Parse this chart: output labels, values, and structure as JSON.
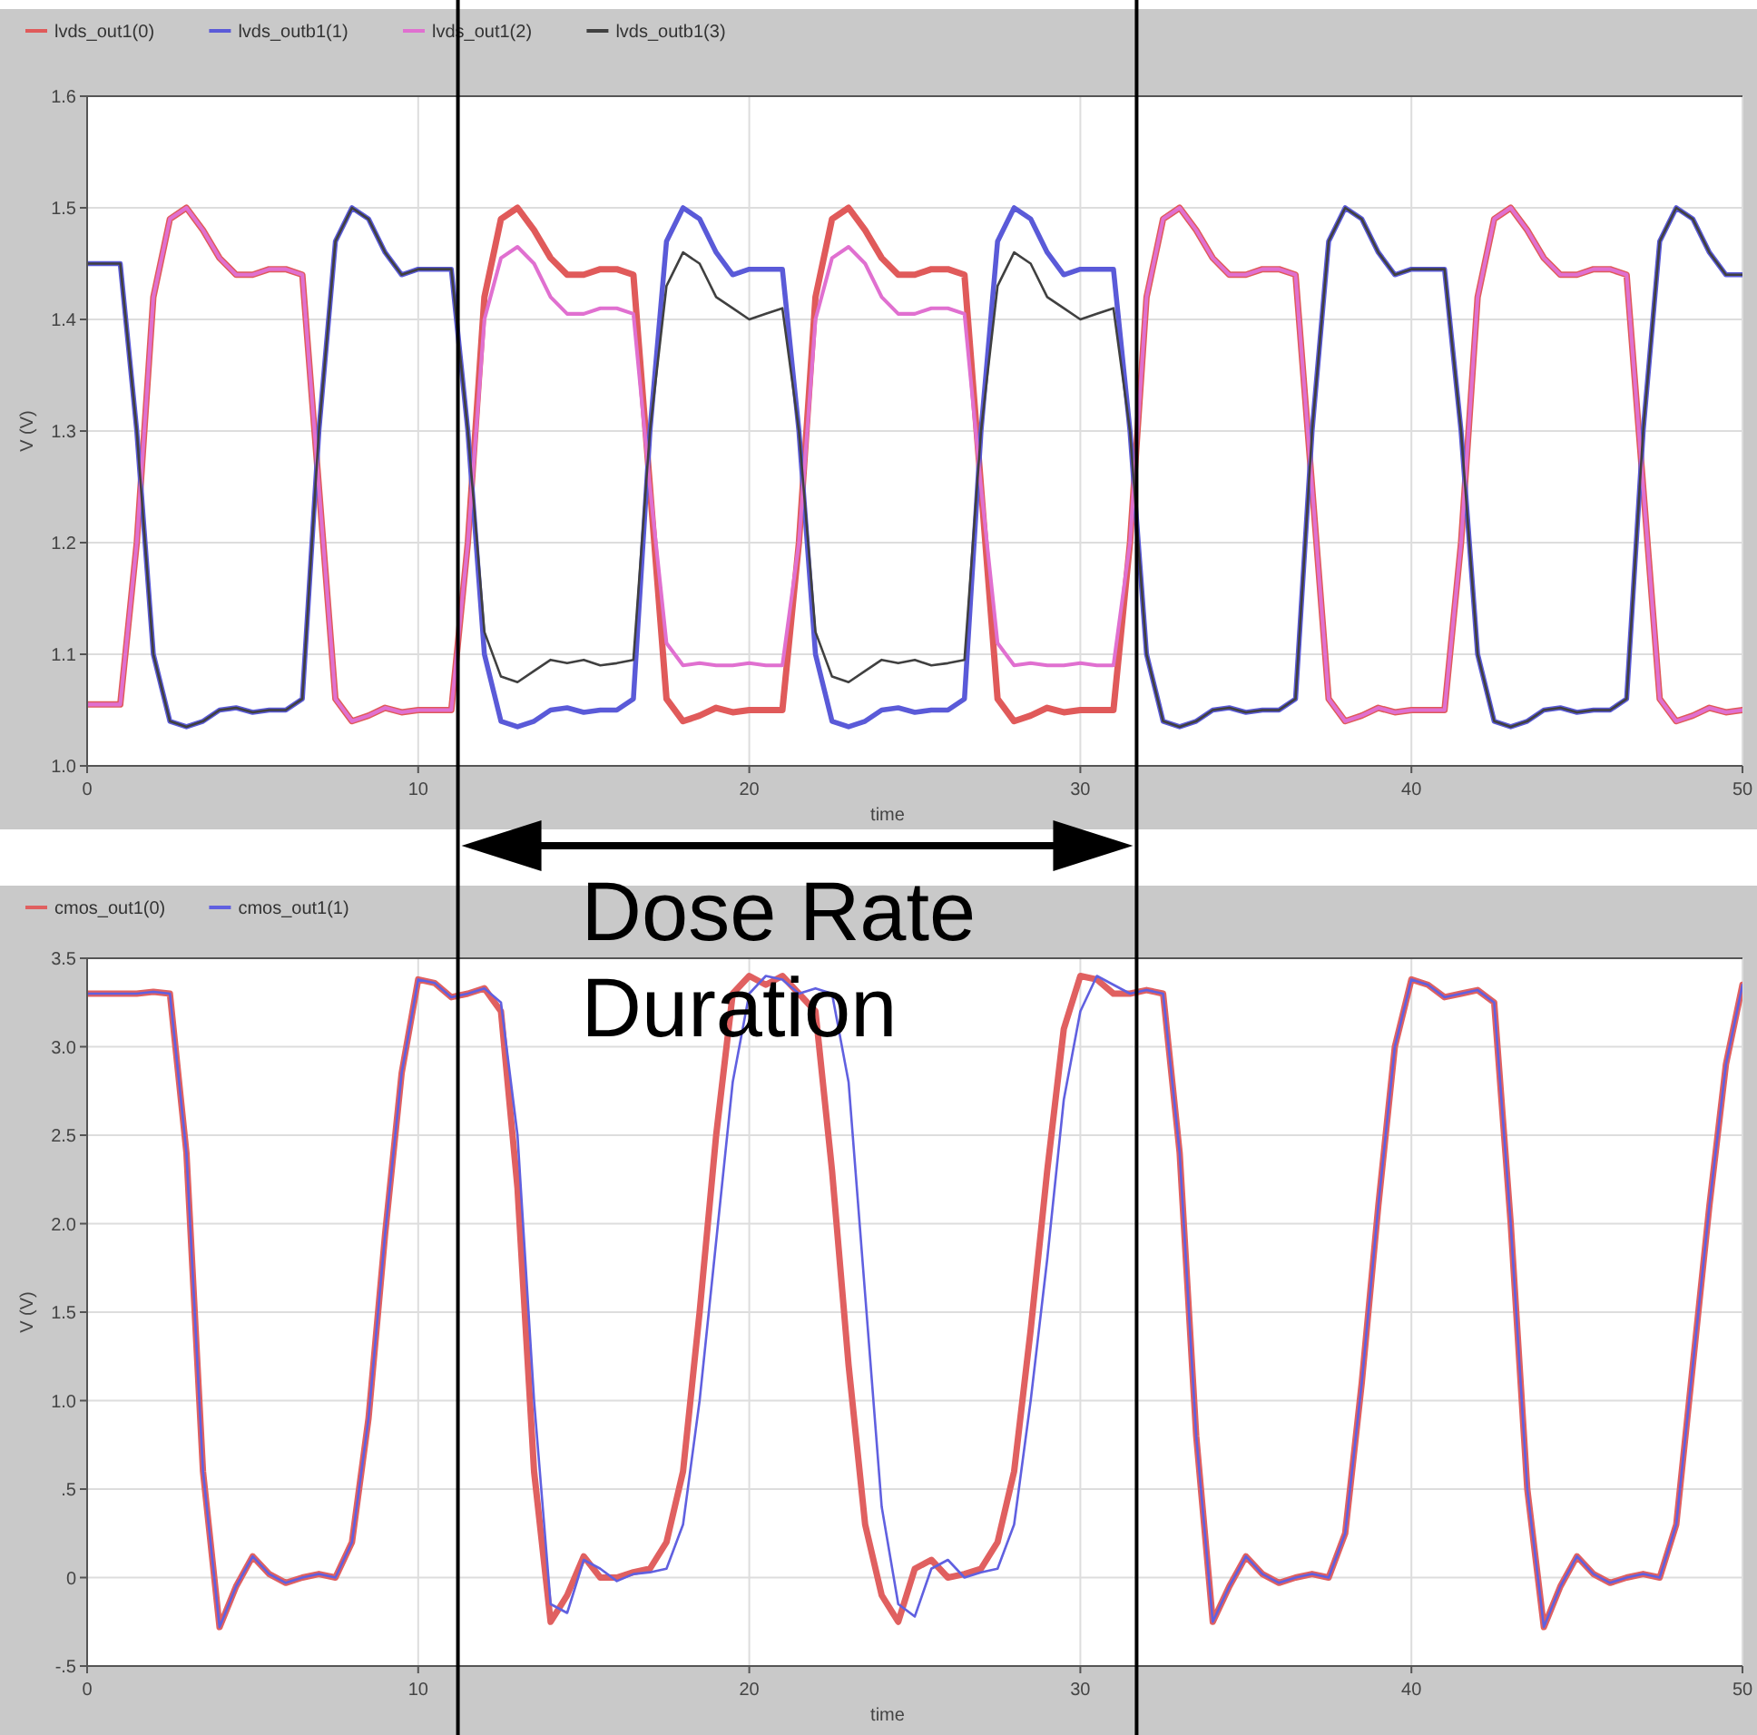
{
  "chart_data": [
    {
      "type": "line",
      "xlabel": "time",
      "ylabel": "V (V)",
      "xlim": [
        0,
        50
      ],
      "ylim": [
        1.0,
        1.6
      ],
      "xticks": [
        0,
        10,
        20,
        30,
        40,
        50
      ],
      "yticks": [
        {
          "value": 1.0,
          "label": "1.0"
        },
        1.1,
        1.2,
        1.3,
        1.4,
        1.5,
        1.6
      ],
      "grid": true,
      "legend": "top left",
      "x": [
        0,
        0.5,
        1,
        1.5,
        2,
        2.5,
        3,
        3.5,
        4,
        4.5,
        5,
        5.5,
        6,
        6.5,
        7,
        7.5,
        8,
        8.5,
        9,
        9.5,
        10,
        10.5,
        11,
        11.5,
        12,
        12.5,
        13,
        13.5,
        14,
        14.5,
        15,
        15.5,
        16,
        16.5,
        17,
        17.5,
        18,
        18.5,
        19,
        19.5,
        20,
        20.5,
        21,
        21.5,
        22,
        22.5,
        23,
        23.5,
        24,
        24.5,
        25,
        25.5,
        26,
        26.5,
        27,
        27.5,
        28,
        28.5,
        29,
        29.5,
        30,
        30.5,
        31,
        31.5,
        32,
        32.5,
        33,
        33.5,
        34,
        34.5,
        35,
        35.5,
        36,
        36.5,
        37,
        37.5,
        38,
        38.5,
        39,
        39.5,
        40,
        40.5,
        41,
        41.5,
        42,
        42.5,
        43,
        43.5,
        44,
        44.5,
        45,
        45.5,
        46,
        46.5,
        47,
        47.5,
        48,
        48.5,
        49,
        49.5,
        50
      ],
      "ref_lines": [
        {
          "axis": "x",
          "value": 11.2,
          "color": "#000000"
        },
        {
          "axis": "x",
          "value": 31.7,
          "color": "#000000"
        }
      ],
      "series": [
        {
          "name": "lvds_out1(0)",
          "color": "#e05a5a",
          "values": [
            1.055,
            1.055,
            1.055,
            1.2,
            1.42,
            1.49,
            1.5,
            1.48,
            1.455,
            1.44,
            1.44,
            1.445,
            1.445,
            1.44,
            1.25,
            1.06,
            1.04,
            1.045,
            1.052,
            1.048,
            1.05,
            1.05,
            1.05,
            1.2,
            1.42,
            1.49,
            1.5,
            1.48,
            1.455,
            1.44,
            1.44,
            1.445,
            1.445,
            1.44,
            1.25,
            1.06,
            1.04,
            1.045,
            1.052,
            1.048,
            1.05,
            1.05,
            1.05,
            1.2,
            1.42,
            1.49,
            1.5,
            1.48,
            1.455,
            1.44,
            1.44,
            1.445,
            1.445,
            1.44,
            1.25,
            1.06,
            1.04,
            1.045,
            1.052,
            1.048,
            1.05,
            1.05,
            1.05,
            1.2,
            1.42,
            1.49,
            1.5,
            1.48,
            1.455,
            1.44,
            1.44,
            1.445,
            1.445,
            1.44,
            1.25,
            1.06,
            1.04,
            1.045,
            1.052,
            1.048,
            1.05,
            1.05,
            1.05,
            1.2,
            1.42,
            1.49,
            1.5,
            1.48,
            1.455,
            1.44,
            1.44,
            1.445,
            1.445,
            1.44,
            1.25,
            1.06,
            1.04,
            1.045,
            1.052,
            1.048,
            1.05
          ]
        },
        {
          "name": "lvds_outb1(1)",
          "color": "#5a5ad8",
          "values": [
            1.45,
            1.45,
            1.45,
            1.3,
            1.1,
            1.04,
            1.035,
            1.04,
            1.05,
            1.052,
            1.048,
            1.05,
            1.05,
            1.06,
            1.3,
            1.47,
            1.5,
            1.49,
            1.46,
            1.44,
            1.445,
            1.445,
            1.445,
            1.3,
            1.1,
            1.04,
            1.035,
            1.04,
            1.05,
            1.052,
            1.048,
            1.05,
            1.05,
            1.06,
            1.3,
            1.47,
            1.5,
            1.49,
            1.46,
            1.44,
            1.445,
            1.445,
            1.445,
            1.3,
            1.1,
            1.04,
            1.035,
            1.04,
            1.05,
            1.052,
            1.048,
            1.05,
            1.05,
            1.06,
            1.3,
            1.47,
            1.5,
            1.49,
            1.46,
            1.44,
            1.445,
            1.445,
            1.445,
            1.3,
            1.1,
            1.04,
            1.035,
            1.04,
            1.05,
            1.052,
            1.048,
            1.05,
            1.05,
            1.06,
            1.3,
            1.47,
            1.5,
            1.49,
            1.46,
            1.44,
            1.445,
            1.445,
            1.445,
            1.3,
            1.1,
            1.04,
            1.035,
            1.04,
            1.05,
            1.052,
            1.048,
            1.05,
            1.05,
            1.06,
            1.3,
            1.47,
            1.5,
            1.49,
            1.46,
            1.44,
            1.44
          ]
        },
        {
          "name": "lvds_out1(2)",
          "color": "#e070d0",
          "values": [
            1.055,
            1.055,
            1.055,
            1.2,
            1.42,
            1.49,
            1.5,
            1.48,
            1.455,
            1.44,
            1.44,
            1.445,
            1.445,
            1.44,
            1.25,
            1.06,
            1.04,
            1.045,
            1.052,
            1.048,
            1.05,
            1.05,
            1.05,
            1.2,
            1.4,
            1.455,
            1.465,
            1.45,
            1.42,
            1.405,
            1.405,
            1.41,
            1.41,
            1.405,
            1.25,
            1.11,
            1.09,
            1.092,
            1.09,
            1.09,
            1.092,
            1.09,
            1.09,
            1.2,
            1.4,
            1.455,
            1.465,
            1.45,
            1.42,
            1.405,
            1.405,
            1.41,
            1.41,
            1.405,
            1.25,
            1.11,
            1.09,
            1.092,
            1.09,
            1.09,
            1.092,
            1.09,
            1.09,
            1.2,
            1.42,
            1.49,
            1.5,
            1.48,
            1.455,
            1.44,
            1.44,
            1.445,
            1.445,
            1.44,
            1.25,
            1.06,
            1.04,
            1.045,
            1.052,
            1.048,
            1.05,
            1.05,
            1.05,
            1.2,
            1.42,
            1.49,
            1.5,
            1.48,
            1.455,
            1.44,
            1.44,
            1.445,
            1.445,
            1.44,
            1.25,
            1.06,
            1.04,
            1.045,
            1.052,
            1.048,
            1.05
          ]
        },
        {
          "name": "lvds_outb1(3)",
          "color": "#404040",
          "values": [
            1.45,
            1.45,
            1.45,
            1.3,
            1.1,
            1.04,
            1.035,
            1.04,
            1.05,
            1.052,
            1.048,
            1.05,
            1.05,
            1.06,
            1.3,
            1.47,
            1.5,
            1.49,
            1.46,
            1.44,
            1.445,
            1.445,
            1.445,
            1.3,
            1.12,
            1.08,
            1.075,
            1.085,
            1.095,
            1.092,
            1.095,
            1.09,
            1.092,
            1.095,
            1.3,
            1.43,
            1.46,
            1.45,
            1.42,
            1.41,
            1.4,
            1.405,
            1.41,
            1.3,
            1.12,
            1.08,
            1.075,
            1.085,
            1.095,
            1.092,
            1.095,
            1.09,
            1.092,
            1.095,
            1.3,
            1.43,
            1.46,
            1.45,
            1.42,
            1.41,
            1.4,
            1.405,
            1.41,
            1.3,
            1.1,
            1.04,
            1.035,
            1.04,
            1.05,
            1.052,
            1.048,
            1.05,
            1.05,
            1.06,
            1.3,
            1.47,
            1.5,
            1.49,
            1.46,
            1.44,
            1.445,
            1.445,
            1.445,
            1.3,
            1.1,
            1.04,
            1.035,
            1.04,
            1.05,
            1.052,
            1.048,
            1.05,
            1.05,
            1.06,
            1.3,
            1.47,
            1.5,
            1.49,
            1.46,
            1.44,
            1.44
          ]
        }
      ]
    },
    {
      "type": "line",
      "xlabel": "time",
      "ylabel": "V (V)",
      "xlim": [
        0,
        50
      ],
      "ylim": [
        -0.5,
        3.5
      ],
      "xticks": [
        0,
        10,
        20,
        30,
        40,
        50
      ],
      "yticks": [
        {
          "value": -0.5,
          "label": "-.5"
        },
        0,
        {
          "value": 0.5,
          "label": ".5"
        },
        {
          "value": 1.0,
          "label": "1.0"
        },
        1.5,
        {
          "value": 2.0,
          "label": "2.0"
        },
        2.5,
        {
          "value": 3.0,
          "label": "3.0"
        },
        3.5
      ],
      "grid": true,
      "legend": "top left",
      "annotations": [
        "Dose Rate Duration"
      ],
      "x": [
        0,
        0.5,
        1,
        1.5,
        2,
        2.5,
        3,
        3.5,
        4,
        4.5,
        5,
        5.5,
        6,
        6.5,
        7,
        7.5,
        8,
        8.5,
        9,
        9.5,
        10,
        10.5,
        11,
        11.5,
        12,
        12.5,
        13,
        13.5,
        14,
        14.5,
        15,
        15.5,
        16,
        16.5,
        17,
        17.5,
        18,
        18.5,
        19,
        19.5,
        20,
        20.5,
        21,
        21.5,
        22,
        22.5,
        23,
        23.5,
        24,
        24.5,
        25,
        25.5,
        26,
        26.5,
        27,
        27.5,
        28,
        28.5,
        29,
        29.5,
        30,
        30.5,
        31,
        31.5,
        32,
        32.5,
        33,
        33.5,
        34,
        34.5,
        35,
        35.5,
        36,
        36.5,
        37,
        37.5,
        38,
        38.5,
        39,
        39.5,
        40,
        40.5,
        41,
        41.5,
        42,
        42.5,
        43,
        43.5,
        44,
        44.5,
        45,
        45.5,
        46,
        46.5,
        47,
        47.5,
        48,
        48.5,
        49,
        49.5,
        50
      ],
      "ref_lines": [
        {
          "axis": "x",
          "value": 11.2,
          "color": "#000000"
        },
        {
          "axis": "x",
          "value": 31.7,
          "color": "#000000"
        }
      ],
      "series": [
        {
          "name": "cmos_out1(0)",
          "color": "#e06060",
          "values": [
            3.3,
            3.3,
            3.3,
            3.3,
            3.31,
            3.3,
            2.4,
            0.6,
            -0.28,
            -0.05,
            0.12,
            0.02,
            -0.03,
            0.0,
            0.02,
            0.0,
            0.2,
            0.9,
            1.94,
            2.85,
            3.38,
            3.36,
            3.28,
            3.3,
            3.33,
            3.2,
            2.2,
            0.6,
            -0.25,
            -0.1,
            0.12,
            0.0,
            0.0,
            0.03,
            0.05,
            0.2,
            0.6,
            1.5,
            2.5,
            3.3,
            3.4,
            3.35,
            3.4,
            3.3,
            3.2,
            2.3,
            1.2,
            0.3,
            -0.1,
            -0.25,
            0.05,
            0.1,
            0.0,
            0.02,
            0.05,
            0.2,
            0.6,
            1.4,
            2.3,
            3.1,
            3.4,
            3.38,
            3.3,
            3.3,
            3.32,
            3.3,
            2.4,
            0.8,
            -0.25,
            -0.05,
            0.12,
            0.02,
            -0.03,
            0.0,
            0.02,
            0.0,
            0.25,
            1.1,
            2.1,
            3.0,
            3.38,
            3.35,
            3.28,
            3.3,
            3.32,
            3.25,
            2.0,
            0.5,
            -0.28,
            -0.05,
            0.12,
            0.02,
            -0.03,
            0.0,
            0.02,
            0.0,
            0.3,
            1.2,
            2.1,
            2.9,
            3.35
          ]
        },
        {
          "name": "cmos_out1(1)",
          "color": "#6060e0",
          "values": [
            3.3,
            3.3,
            3.3,
            3.3,
            3.31,
            3.3,
            2.4,
            0.6,
            -0.28,
            -0.05,
            0.12,
            0.02,
            -0.03,
            0.0,
            0.02,
            0.0,
            0.2,
            0.9,
            1.94,
            2.85,
            3.38,
            3.36,
            3.28,
            3.3,
            3.33,
            3.25,
            2.5,
            1.0,
            -0.15,
            -0.2,
            0.1,
            0.05,
            -0.02,
            0.02,
            0.03,
            0.05,
            0.3,
            1.0,
            1.9,
            2.8,
            3.3,
            3.4,
            3.38,
            3.3,
            3.33,
            3.3,
            2.8,
            1.6,
            0.4,
            -0.15,
            -0.22,
            0.05,
            0.1,
            0.0,
            0.03,
            0.05,
            0.3,
            1.0,
            1.8,
            2.7,
            3.2,
            3.4,
            3.35,
            3.3,
            3.32,
            3.3,
            2.4,
            0.8,
            -0.25,
            -0.05,
            0.12,
            0.02,
            -0.03,
            0.0,
            0.02,
            0.0,
            0.25,
            1.1,
            2.1,
            3.0,
            3.38,
            3.35,
            3.28,
            3.3,
            3.32,
            3.25,
            2.0,
            0.5,
            -0.28,
            -0.05,
            0.12,
            0.02,
            -0.03,
            0.0,
            0.02,
            0.0,
            0.3,
            1.2,
            2.1,
            2.9,
            3.35
          ]
        }
      ]
    }
  ]
}
